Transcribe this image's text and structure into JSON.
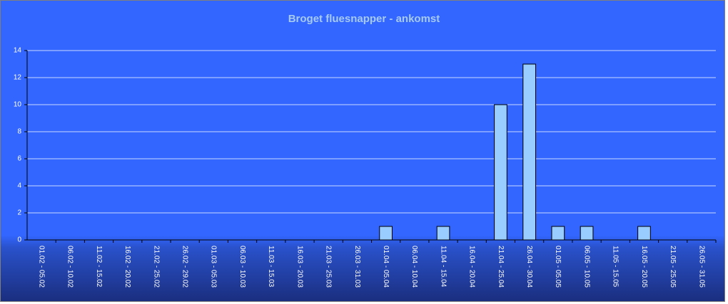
{
  "chart_data": {
    "type": "bar",
    "title": "Broget fluesnapper - ankomst",
    "categories": [
      "01.02 - 05.02",
      "06.02 - 10.02",
      "11.02 - 15.02",
      "16.02 - 20.02",
      "21.02 - 25.02",
      "26.02 - 29.02",
      "01.03 - 05.03",
      "06.03 - 10.03",
      "11.03 - 15.03",
      "16.03 - 20.03",
      "21.03 - 25.03",
      "26.03 - 31.03",
      "01.04 - 05.04",
      "06.04 - 10.04",
      "11.04 - 15.04",
      "16.04 - 20.04",
      "21.04 - 25.04",
      "26.04 - 30.04",
      "01.05 - 05.05",
      "06.05 - 10.05",
      "11.05 - 15.05",
      "16.05 - 20.05",
      "21.05 - 25.05",
      "26.05 - 31.05"
    ],
    "values": [
      0,
      0,
      0,
      0,
      0,
      0,
      0,
      0,
      0,
      0,
      0,
      0,
      1,
      0,
      1,
      0,
      10,
      13,
      1,
      1,
      0,
      1,
      0,
      0
    ],
    "color": "#99ccff",
    "ylim": [
      0,
      14
    ],
    "yticks": [
      0,
      2,
      4,
      6,
      8,
      10,
      12,
      14
    ],
    "grid": true
  }
}
